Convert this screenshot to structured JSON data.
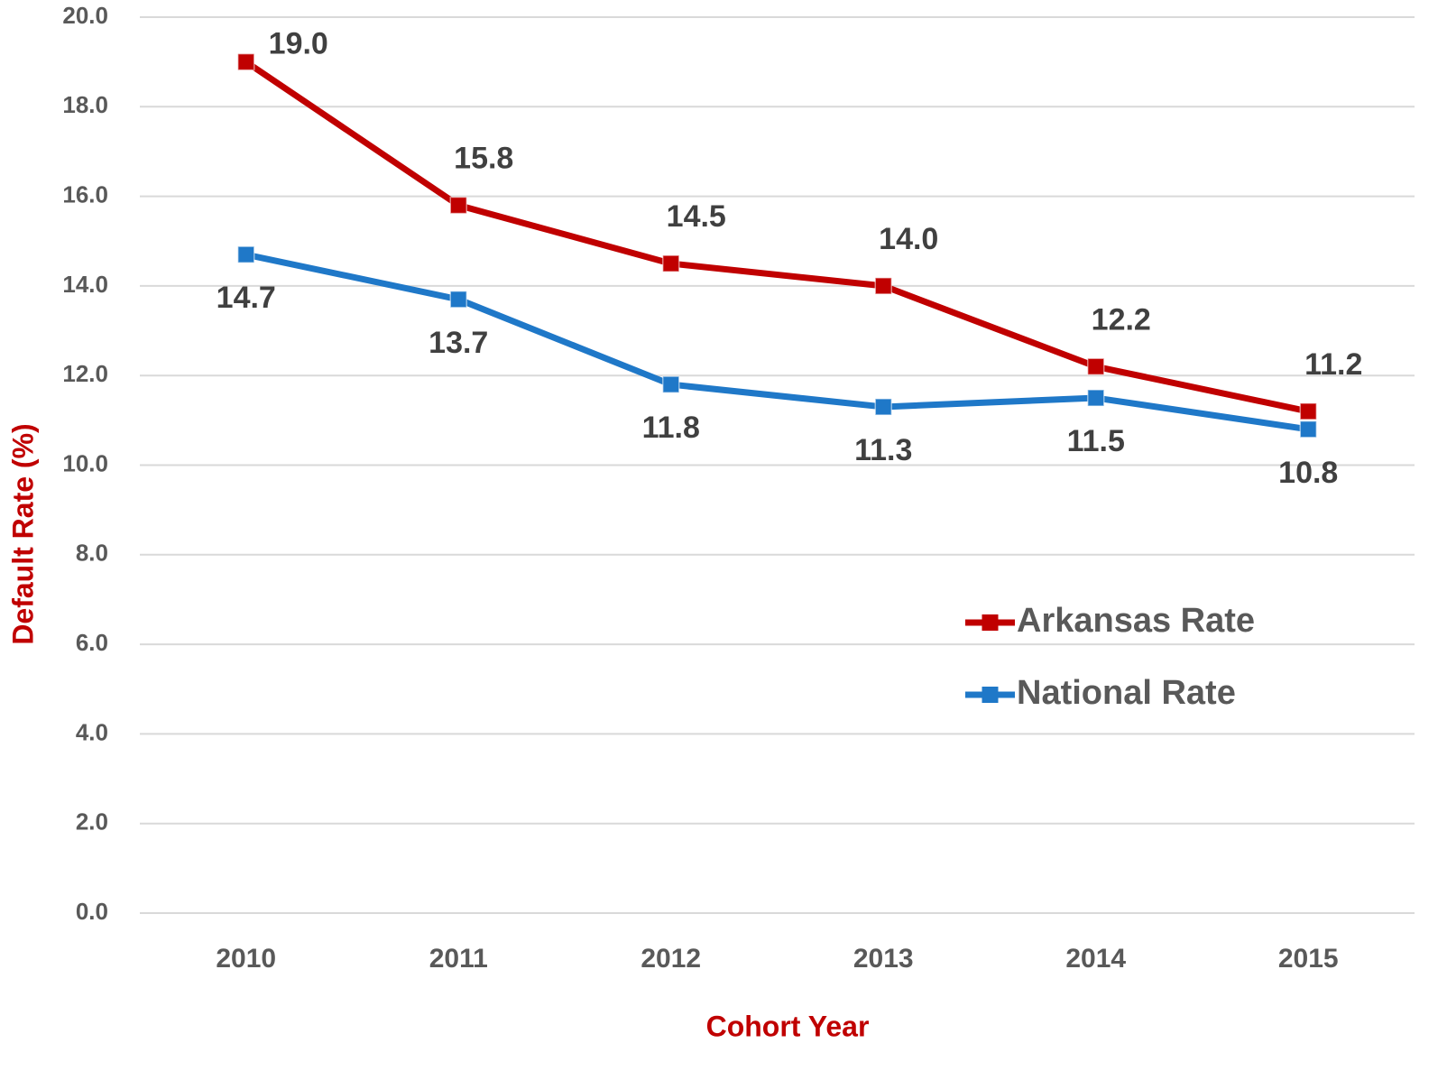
{
  "chart_data": {
    "type": "line",
    "x_label": "Cohort Year",
    "y_label": "Default Rate (%)",
    "categories": [
      "2010",
      "2011",
      "2012",
      "2013",
      "2014",
      "2015"
    ],
    "series": [
      {
        "name": "Arkansas Rate",
        "color": "#c00000",
        "values": [
          19.0,
          15.8,
          14.5,
          14.0,
          12.2,
          11.2
        ],
        "value_labels": [
          "19.0",
          "15.8",
          "14.5",
          "14.0",
          "12.2",
          "11.2"
        ]
      },
      {
        "name": "National Rate",
        "color": "#1f78c8",
        "values": [
          14.7,
          13.7,
          11.8,
          11.3,
          11.5,
          10.8
        ],
        "value_labels": [
          "14.7",
          "13.7",
          "11.8",
          "11.3",
          "11.5",
          "10.8"
        ]
      }
    ],
    "ylim": [
      0,
      20
    ],
    "yticks": [
      {
        "value": 0,
        "label": "0.0"
      },
      {
        "value": 2,
        "label": "2.0"
      },
      {
        "value": 4,
        "label": "4.0"
      },
      {
        "value": 6,
        "label": "6.0"
      },
      {
        "value": 8,
        "label": "8.0"
      },
      {
        "value": 10,
        "label": "10.0"
      },
      {
        "value": 12,
        "label": "12.0"
      },
      {
        "value": 14,
        "label": "14.0"
      },
      {
        "value": 16,
        "label": "16.0"
      },
      {
        "value": 18,
        "label": "18.0"
      },
      {
        "value": 20,
        "label": "20.0"
      }
    ],
    "grid": true,
    "legend": "right"
  }
}
